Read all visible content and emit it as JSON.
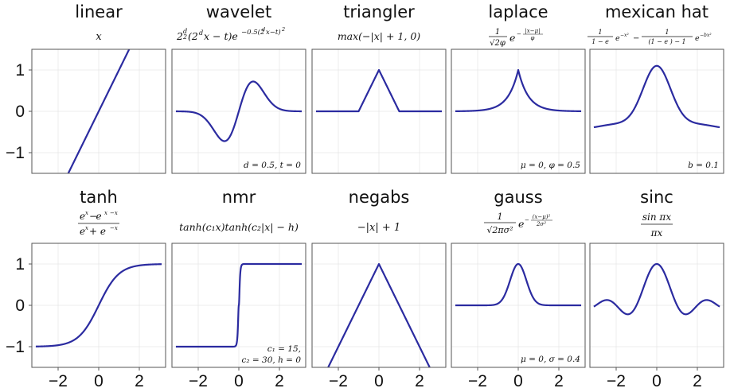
{
  "chart_data": [
    {
      "name": "linear",
      "type": "line",
      "title": "linear",
      "formula": "x",
      "annotation": "",
      "xlim": [
        -3.3,
        3.3
      ],
      "ylim": [
        -1.5,
        1.5
      ],
      "series": [
        {
          "function": "x"
        }
      ]
    },
    {
      "name": "wavelet",
      "type": "line",
      "title": "wavelet",
      "formula": "2^(d/2) (2^d x − t) e^(−0.5(2^d x − t)^2)",
      "annotation": "d = 0.5, t = 0",
      "params": {
        "d": 0.5,
        "t": 0
      },
      "xlim": [
        -3.3,
        3.3
      ],
      "ylim": [
        -1.5,
        1.5
      ],
      "series": [
        {
          "function": "wavelet"
        }
      ]
    },
    {
      "name": "triangler",
      "type": "line",
      "title": "triangler",
      "formula": "max(−|x| + 1, 0)",
      "annotation": "",
      "xlim": [
        -3.3,
        3.3
      ],
      "ylim": [
        -1.5,
        1.5
      ],
      "series": [
        {
          "function": "triangler"
        }
      ]
    },
    {
      "name": "laplace",
      "type": "line",
      "title": "laplace",
      "formula": "1/(√2 φ) e^(−|x−μ|/φ)",
      "annotation": "μ = 0, φ = 0.5",
      "params": {
        "mu": 0,
        "phi": 0.5
      },
      "xlim": [
        -3.3,
        3.3
      ],
      "ylim": [
        -1.5,
        1.5
      ],
      "series": [
        {
          "function": "laplace"
        }
      ]
    },
    {
      "name": "mexican hat",
      "type": "line",
      "title": "mexican hat",
      "formula": "1/(1 − e^(b−1)) e^(−x²) − 1/((1 − e^(b−1)) − 1) e^(−bx²)",
      "annotation": "b = 0.1",
      "params": {
        "b": 0.1
      },
      "xlim": [
        -3.3,
        3.3
      ],
      "ylim": [
        -1.5,
        1.5
      ],
      "series": [
        {
          "function": "mexican_hat"
        }
      ]
    },
    {
      "name": "tanh",
      "type": "line",
      "title": "tanh",
      "formula": "(e^x − e^−x)/(e^x + e^−x)",
      "annotation": "",
      "xlim": [
        -3.3,
        3.3
      ],
      "ylim": [
        -1.5,
        1.5
      ],
      "series": [
        {
          "function": "tanh"
        }
      ]
    },
    {
      "name": "nmr",
      "type": "line",
      "title": "nmr",
      "formula": "tanh(c1 x) tanh(c2 |x| − h)",
      "annotation": "c1 = 15, c2 = 30, h = 0",
      "params": {
        "c1": 15,
        "c2": 30,
        "h": 0
      },
      "xlim": [
        -3.3,
        3.3
      ],
      "ylim": [
        -1.5,
        1.5
      ],
      "series": [
        {
          "function": "nmr"
        }
      ]
    },
    {
      "name": "negabs",
      "type": "line",
      "title": "negabs",
      "formula": "−|x| + 1",
      "annotation": "",
      "xlim": [
        -3.3,
        3.3
      ],
      "ylim": [
        -1.5,
        1.5
      ],
      "series": [
        {
          "function": "negabs"
        }
      ]
    },
    {
      "name": "gauss",
      "type": "line",
      "title": "gauss",
      "formula": "1/√(2πσ²) e^(−(x−μ)²/(2σ²))",
      "annotation": "μ = 0, σ = 0.4",
      "params": {
        "mu": 0,
        "sigma": 0.4
      },
      "xlim": [
        -3.3,
        3.3
      ],
      "ylim": [
        -1.5,
        1.5
      ],
      "series": [
        {
          "function": "gauss"
        }
      ]
    },
    {
      "name": "sinc",
      "type": "line",
      "title": "sinc",
      "formula": "sin πx / πx",
      "annotation": "",
      "xlim": [
        -3.3,
        3.3
      ],
      "ylim": [
        -1.5,
        1.5
      ],
      "series": [
        {
          "function": "sinc"
        }
      ]
    }
  ],
  "axes": {
    "y_ticks": [
      1,
      0,
      -1
    ],
    "y_tick_labels": [
      "1",
      "0",
      "−1"
    ],
    "x_ticks": [
      -2,
      0,
      2
    ],
    "x_tick_labels": [
      "−2",
      "0",
      "2"
    ]
  },
  "colors": {
    "curve": "#2b2ba0",
    "frame": "#555555",
    "grid": "#e8e8e8"
  }
}
